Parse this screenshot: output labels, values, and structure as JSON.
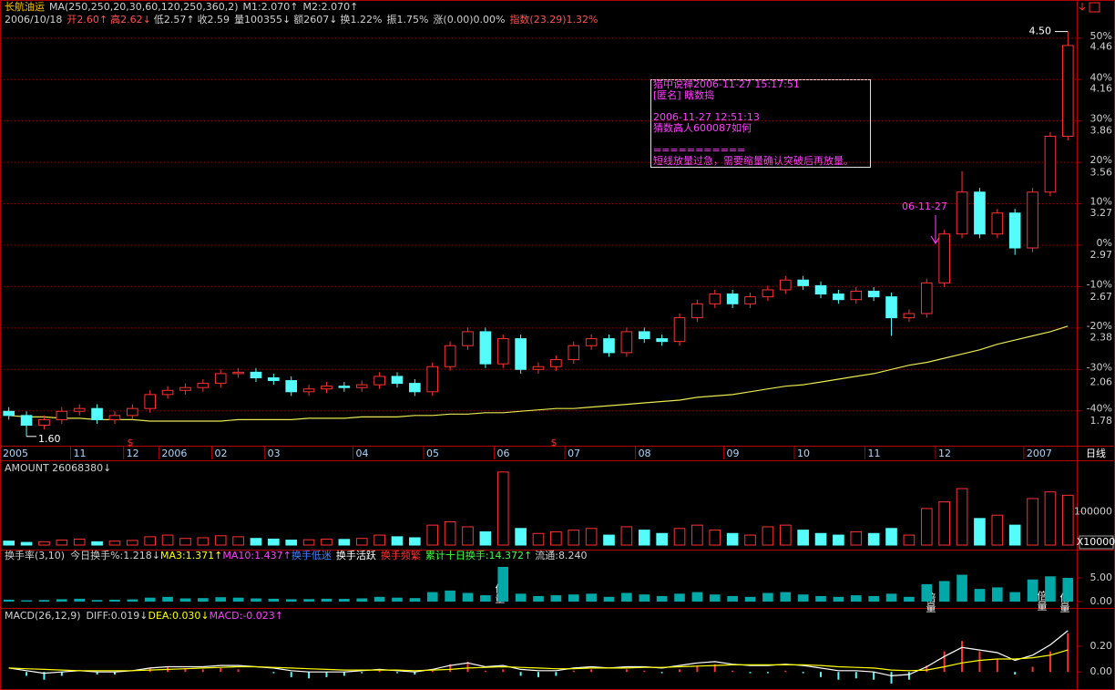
{
  "chart_data": [
    {
      "type": "candlestick",
      "header_1": [
        "长航油运",
        "MA(250,250,20,30,60,120,250,360,2)",
        "M1:2.070↑",
        "M2:2.070↑"
      ],
      "header_2": [
        "2006/10/18",
        "开2.60↑",
        "高2.62↓",
        "低2.57↑",
        "收2.59",
        "量100355↓",
        "额2607↓",
        "换1.22%",
        "振1.75%",
        "涨(0.00)0.00%",
        "指数(23.29)1.32%"
      ],
      "categories": [
        "2005",
        null,
        null,
        null,
        "11",
        null,
        null,
        "12",
        null,
        "2006",
        null,
        null,
        "02",
        null,
        null,
        "03",
        null,
        null,
        null,
        null,
        "04",
        null,
        null,
        null,
        "05",
        null,
        null,
        null,
        "06",
        null,
        null,
        null,
        "07",
        null,
        null,
        null,
        "08",
        null,
        null,
        null,
        null,
        "09",
        null,
        null,
        null,
        "10",
        null,
        null,
        null,
        "11",
        null,
        null,
        null,
        "12",
        null,
        null,
        null,
        null,
        "2007",
        null,
        null
      ],
      "open": [
        1.78,
        1.75,
        1.68,
        1.72,
        1.78,
        1.8,
        1.72,
        1.75,
        1.8,
        1.9,
        1.93,
        1.95,
        1.98,
        2.05,
        2.06,
        2.02,
        2.0,
        1.92,
        1.94,
        1.96,
        1.95,
        1.97,
        2.03,
        1.98,
        1.92,
        2.1,
        2.25,
        2.35,
        2.12,
        2.3,
        2.08,
        2.1,
        2.15,
        2.25,
        2.3,
        2.2,
        2.35,
        2.3,
        2.28,
        2.45,
        2.55,
        2.62,
        2.55,
        2.6,
        2.65,
        2.72,
        2.68,
        2.62,
        2.58,
        2.64,
        2.6,
        2.45,
        2.48,
        2.7,
        3.05,
        3.35,
        3.05,
        3.2,
        2.95,
        3.35,
        3.75
      ],
      "high": [
        1.81,
        1.78,
        1.75,
        1.81,
        1.83,
        1.83,
        1.78,
        1.83,
        1.93,
        1.96,
        1.98,
        2.01,
        2.08,
        2.09,
        2.09,
        2.05,
        2.03,
        1.97,
        1.99,
        1.99,
        2.0,
        2.06,
        2.06,
        2.01,
        2.13,
        2.28,
        2.38,
        2.38,
        2.33,
        2.33,
        2.13,
        2.18,
        2.28,
        2.33,
        2.33,
        2.38,
        2.38,
        2.33,
        2.48,
        2.58,
        2.65,
        2.65,
        2.63,
        2.68,
        2.75,
        2.75,
        2.71,
        2.65,
        2.67,
        2.67,
        2.63,
        2.51,
        2.73,
        3.08,
        3.5,
        3.38,
        3.23,
        3.23,
        3.38,
        3.78,
        4.5
      ],
      "low": [
        1.72,
        1.6,
        1.65,
        1.69,
        1.75,
        1.69,
        1.69,
        1.72,
        1.77,
        1.87,
        1.9,
        1.92,
        1.95,
        2.02,
        1.99,
        1.97,
        1.89,
        1.89,
        1.91,
        1.92,
        1.92,
        1.94,
        1.95,
        1.89,
        1.89,
        2.07,
        2.22,
        2.09,
        2.09,
        2.05,
        2.05,
        2.07,
        2.12,
        2.22,
        2.17,
        2.17,
        2.27,
        2.25,
        2.25,
        2.42,
        2.52,
        2.52,
        2.52,
        2.57,
        2.62,
        2.65,
        2.59,
        2.55,
        2.55,
        2.57,
        2.32,
        2.42,
        2.45,
        2.67,
        3.02,
        3.02,
        3.02,
        2.9,
        2.92,
        3.32,
        3.72
      ],
      "close": [
        1.75,
        1.68,
        1.72,
        1.78,
        1.8,
        1.72,
        1.75,
        1.8,
        1.9,
        1.93,
        1.95,
        1.98,
        2.05,
        2.06,
        2.02,
        2.0,
        1.92,
        1.94,
        1.96,
        1.95,
        1.97,
        2.03,
        1.98,
        1.92,
        2.1,
        2.25,
        2.35,
        2.12,
        2.3,
        2.08,
        2.1,
        2.15,
        2.25,
        2.3,
        2.2,
        2.35,
        2.3,
        2.28,
        2.45,
        2.55,
        2.62,
        2.55,
        2.6,
        2.65,
        2.72,
        2.68,
        2.62,
        2.58,
        2.64,
        2.6,
        2.45,
        2.48,
        2.7,
        3.05,
        3.35,
        3.05,
        3.2,
        2.95,
        3.35,
        3.75,
        4.4
      ],
      "ma": {
        "color": "#e8e850",
        "values": [
          1.75,
          1.74,
          1.74,
          1.73,
          1.73,
          1.72,
          1.72,
          1.72,
          1.71,
          1.71,
          1.71,
          1.71,
          1.71,
          1.72,
          1.72,
          1.72,
          1.72,
          1.73,
          1.73,
          1.73,
          1.74,
          1.74,
          1.74,
          1.75,
          1.75,
          1.76,
          1.76,
          1.77,
          1.77,
          1.78,
          1.79,
          1.8,
          1.8,
          1.81,
          1.82,
          1.83,
          1.84,
          1.85,
          1.86,
          1.88,
          1.89,
          1.9,
          1.92,
          1.94,
          1.96,
          1.97,
          1.99,
          2.01,
          2.03,
          2.05,
          2.08,
          2.11,
          2.13,
          2.16,
          2.19,
          2.22,
          2.26,
          2.29,
          2.32,
          2.35,
          2.39
        ]
      },
      "up_color": "#ff3232",
      "down_color": "#54fcfc",
      "grid_color": "#a00000",
      "ylim": [
        1.54,
        4.53
      ],
      "yticks": [
        4.46,
        4.16,
        3.86,
        3.56,
        3.27,
        2.97,
        2.67,
        2.38,
        2.06,
        1.78
      ],
      "y2lim": [
        -48.2,
        52.6
      ],
      "y2ticks": [
        {
          "value": 50,
          "label": "50%"
        },
        {
          "value": 40,
          "label": "40%"
        },
        {
          "value": 30,
          "label": "30%"
        },
        {
          "value": 20,
          "label": "20%"
        },
        {
          "value": 10,
          "label": "10%"
        },
        {
          "value": 0,
          "label": "0%"
        },
        {
          "value": -10,
          "label": "-10%"
        },
        {
          "value": -20,
          "label": "-20%"
        },
        {
          "value": -30,
          "label": "-30%"
        },
        {
          "value": -40,
          "label": "-40%"
        }
      ],
      "grid": true,
      "high_mark": {
        "value": 4.5,
        "label": "4.50"
      },
      "low_mark": {
        "value": 1.6,
        "label": "1.60"
      },
      "callout": "06-11-27",
      "note_lines": [
        "猎中说禅2006-11-27 15:17:51",
        "[匿名] 瞎数捣",
        "2006-11-27 12:51:13",
        "猜数高人600087如何",
        "===========",
        "短线放量过急，需要缩量确认突破后再放量。"
      ],
      "markers": [
        "$",
        "$"
      ],
      "period": "日线"
    },
    {
      "type": "bar",
      "title": "AMOUNT 26068380↓",
      "unit": "X10000",
      "values": [
        12000,
        8000,
        10000,
        15000,
        18000,
        10000,
        12000,
        14000,
        25000,
        30000,
        20000,
        22000,
        28000,
        25000,
        20000,
        18000,
        15000,
        16000,
        18000,
        17000,
        20000,
        30000,
        25000,
        22000,
        60000,
        70000,
        55000,
        40000,
        220000,
        50000,
        35000,
        40000,
        45000,
        50000,
        30000,
        55000,
        45000,
        35000,
        50000,
        60000,
        45000,
        35000,
        30000,
        55000,
        60000,
        45000,
        35000,
        30000,
        40000,
        35000,
        50000,
        30000,
        110000,
        130000,
        170000,
        80000,
        90000,
        60000,
        140000,
        160000,
        150000
      ],
      "ylim": [
        0,
        225000
      ],
      "yticks": [
        100000
      ]
    },
    {
      "type": "bar",
      "header": [
        "换手率(3,10)",
        "今日换手%:1.218↓",
        "MA3:1.371↑",
        "MA10:1.437↑",
        "换手低迷",
        "换手活跃",
        "换手频繁",
        "累计十日换手:14.372↑",
        "流通:8.240"
      ],
      "color": "#00a8a8",
      "values": [
        0.4,
        0.27,
        0.33,
        0.5,
        0.6,
        0.33,
        0.4,
        0.47,
        0.83,
        1.0,
        0.67,
        0.73,
        0.93,
        0.83,
        0.67,
        0.6,
        0.5,
        0.53,
        0.6,
        0.57,
        0.67,
        1.0,
        0.83,
        0.73,
        2.0,
        2.33,
        1.83,
        1.33,
        7.33,
        1.67,
        1.17,
        1.33,
        1.5,
        1.67,
        1.0,
        1.83,
        1.5,
        1.17,
        1.67,
        2.0,
        1.5,
        1.17,
        1.0,
        1.83,
        2.0,
        1.5,
        1.17,
        1.0,
        1.33,
        1.17,
        1.67,
        1.0,
        3.67,
        4.33,
        5.67,
        2.67,
        3.0,
        2.0,
        4.67,
        5.33,
        5.0
      ],
      "ylim": [
        -0.77,
        10.2
      ],
      "yticks": [
        {
          "value": 5,
          "label": "5.00"
        },
        {
          "value": 0,
          "label": "0.00"
        }
      ],
      "annotations": [
        "倍量",
        "倍量",
        "倍量",
        "倍量"
      ]
    },
    {
      "type": "macd",
      "header": [
        "MACD(26,12,9)",
        "DIFF:0.019↓",
        "DEA:0.030↓",
        "MACD:-0.023↑"
      ],
      "lines": [
        {
          "color": "#ffffff",
          "values": [
            0.03,
            0.01,
            -0.01,
            0.0,
            0.01,
            0.0,
            0.0,
            0.01,
            0.03,
            0.04,
            0.04,
            0.04,
            0.05,
            0.05,
            0.04,
            0.03,
            0.01,
            0.0,
            0.0,
            0.0,
            0.01,
            0.02,
            0.01,
            0.0,
            0.02,
            0.05,
            0.07,
            0.04,
            0.05,
            0.02,
            0.01,
            0.01,
            0.03,
            0.04,
            0.03,
            0.04,
            0.04,
            0.03,
            0.05,
            0.07,
            0.08,
            0.06,
            0.05,
            0.05,
            0.06,
            0.05,
            0.03,
            0.01,
            0.01,
            0.0,
            -0.03,
            -0.02,
            0.04,
            0.12,
            0.19,
            0.17,
            0.15,
            0.09,
            0.13,
            0.21,
            0.32
          ]
        },
        {
          "color": "#ffff00",
          "values": [
            0.03,
            0.025,
            0.02,
            0.015,
            0.01,
            0.01,
            0.01,
            0.01,
            0.015,
            0.02,
            0.025,
            0.03,
            0.035,
            0.04,
            0.04,
            0.035,
            0.03,
            0.025,
            0.02,
            0.015,
            0.015,
            0.015,
            0.015,
            0.01,
            0.015,
            0.02,
            0.03,
            0.035,
            0.04,
            0.035,
            0.03,
            0.025,
            0.025,
            0.03,
            0.03,
            0.03,
            0.035,
            0.035,
            0.04,
            0.045,
            0.05,
            0.055,
            0.055,
            0.055,
            0.055,
            0.055,
            0.05,
            0.04,
            0.035,
            0.03,
            0.015,
            0.01,
            0.015,
            0.04,
            0.07,
            0.09,
            0.1,
            0.1,
            0.11,
            0.13,
            0.17
          ]
        }
      ],
      "bars": [
        0,
        -0.03,
        -0.06,
        -0.03,
        0,
        -0.02,
        -0.02,
        0,
        0.03,
        0.04,
        0.03,
        0.02,
        0.03,
        0.02,
        0,
        -0.01,
        -0.04,
        -0.05,
        -0.04,
        -0.03,
        -0.01,
        0.01,
        -0.01,
        -0.02,
        0.01,
        0.06,
        0.08,
        0.01,
        0.02,
        -0.03,
        -0.04,
        -0.03,
        0.01,
        0.02,
        0,
        0.02,
        0.01,
        -0.01,
        0.02,
        0.05,
        0.06,
        0.01,
        -0.01,
        -0.01,
        0.01,
        -0.01,
        -0.04,
        -0.06,
        -0.05,
        -0.06,
        -0.09,
        -0.06,
        0.05,
        0.16,
        0.24,
        0.16,
        0.1,
        -0.02,
        0.04,
        0.16,
        0.3
      ],
      "ylim": [
        -0.14,
        0.39
      ],
      "yticks": [
        {
          "value": 0.2,
          "label": "0.20"
        },
        {
          "value": 0,
          "label": "0.00"
        }
      ]
    }
  ]
}
